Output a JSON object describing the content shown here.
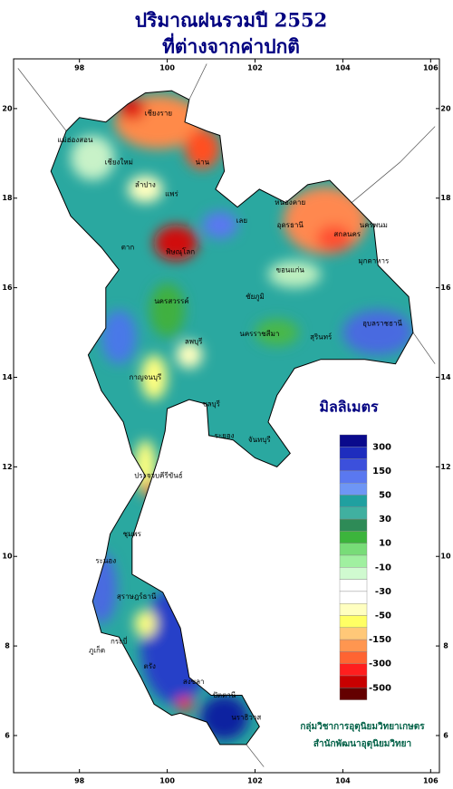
{
  "header": {
    "title": "ปริมาณฝนรวมปี 2552",
    "subtitle": "ที่ต่างจากค่าปกติ"
  },
  "map": {
    "lon_range": [
      96.5,
      106.2
    ],
    "lat_range": [
      5.17,
      21.11
    ],
    "lon_ticks": [
      98,
      100,
      102,
      104,
      106
    ],
    "lat_ticks": [
      6,
      8,
      10,
      12,
      14,
      16,
      18,
      20
    ],
    "provinces": [
      "เชียงราย",
      "เชียงใหม่",
      "แม่ฮ่องสอน",
      "น่าน",
      "แพร่",
      "ลำปาง",
      "ตาก",
      "พิษณุโลก",
      "เลย",
      "หนองคาย",
      "อุดรธานี",
      "สกลนคร",
      "นครพนม",
      "มุกดาหาร",
      "ขอนแก่น",
      "ชัยภูมิ",
      "นครราชสีมา",
      "อุบลราชธานี",
      "สุรินทร์",
      "นครสวรรค์",
      "ลพบุรี",
      "กาญจนบุรี",
      "ชลบุรี",
      "ระยอง",
      "จันทบุรี",
      "ประจวบคีรีขันธ์",
      "ชุมพร",
      "ระนอง",
      "สุราษฎร์ธานี",
      "กระบี่",
      "ภูเก็ต",
      "ตรัง",
      "สงขลา",
      "ปัตตานี",
      "นราธิวาส"
    ]
  },
  "legend": {
    "title": "มิลลิเมตร",
    "colors": [
      "#0a0a8c",
      "#1e2dbe",
      "#3c50dc",
      "#5a78f0",
      "#6e96f5",
      "#20a0a0",
      "#40b0a0",
      "#2e8b57",
      "#3cb43c",
      "#78dc78",
      "#a0f0a0",
      "#d0fad0",
      "#ffffff",
      "#ffffff",
      "#ffffc0",
      "#ffff64",
      "#ffc878",
      "#ff9650",
      "#ff6432",
      "#ff1e1e",
      "#c80000",
      "#640000"
    ],
    "ticks": [
      300,
      150,
      50,
      30,
      10,
      -10,
      -30,
      -50,
      -150,
      -300,
      -500
    ]
  },
  "footer": {
    "line1": "กลุ่มวิชาการอุตุนิยมวิทยาเกษตร",
    "line2": "สำนักพัฒนาอุตุนิยมวิทยา"
  }
}
